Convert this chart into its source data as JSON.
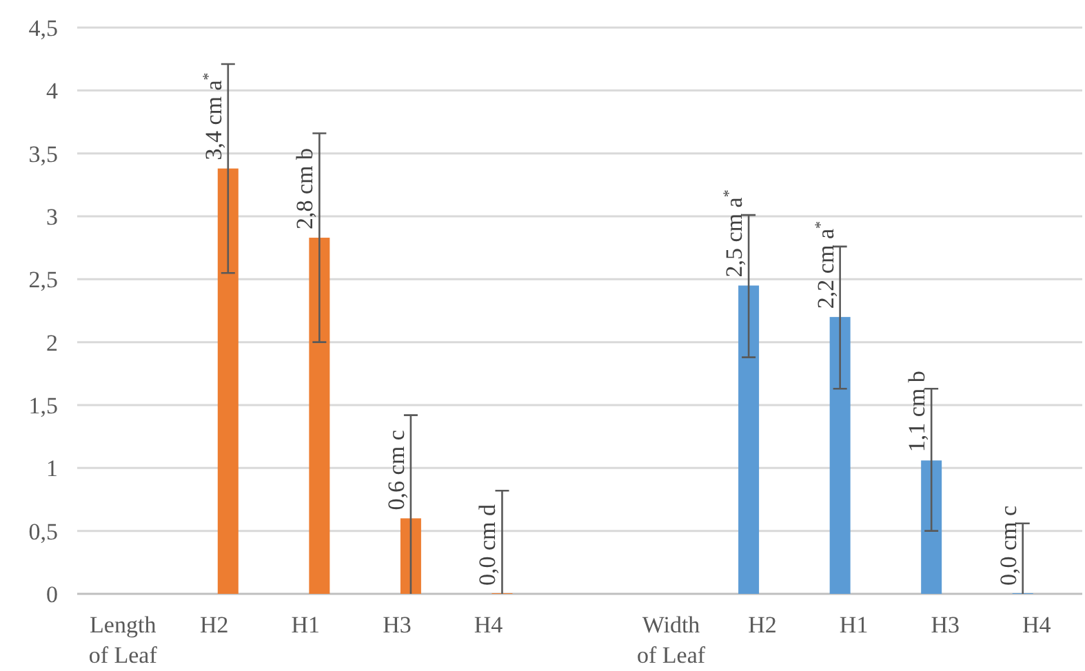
{
  "chart_data": {
    "type": "bar",
    "categories": [
      "Length of Leaf",
      "H2",
      "H1",
      "H3",
      "H4",
      null,
      "Width of Leaf",
      "H2",
      "H1",
      "H3",
      "H4"
    ],
    "series": [
      {
        "color": "#5b9bd5",
        "values": [
          null,
          null,
          null,
          null,
          null,
          null,
          null,
          2.45,
          2.2,
          1.06,
          0
        ],
        "errors": [
          null,
          null,
          null,
          null,
          null,
          null,
          null,
          [
            1.88,
            3.01
          ],
          [
            1.63,
            2.76
          ],
          [
            0.5,
            1.63
          ],
          [
            0,
            0.56
          ]
        ],
        "value_labels": [
          null,
          null,
          null,
          null,
          null,
          null,
          null,
          "2,5 cm a$^{*}$",
          "2,2 cm a$^{*}$",
          "1,1 cm b",
          "0,0 cm c"
        ]
      },
      {
        "color": "#ed7d31",
        "values": [
          null,
          3.38,
          2.83,
          0.6,
          0,
          null,
          null,
          null,
          null,
          null,
          null
        ],
        "errors": [
          null,
          [
            2.55,
            4.21
          ],
          [
            2.0,
            3.66
          ],
          [
            0,
            1.42
          ],
          [
            0,
            0.82
          ],
          null,
          null,
          null,
          null,
          null,
          null
        ],
        "value_labels": [
          null,
          "3,4 cm a$^{*}$",
          "2,8 cm b",
          "0,6 cm c",
          "0,0 cm d",
          null,
          null,
          null,
          null,
          null,
          null
        ]
      }
    ],
    "ylim": [
      0,
      4.5
    ],
    "yticks": [
      0,
      {
        "value": 0.5,
        "label": "0,5"
      },
      1,
      {
        "value": 1.5,
        "label": "1,5"
      },
      2,
      {
        "value": 2.5,
        "label": "2,5"
      },
      3,
      {
        "value": 3.5,
        "label": "3,5"
      },
      4,
      {
        "value": 4.5,
        "label": "4,5"
      }
    ],
    "grid": "y"
  }
}
